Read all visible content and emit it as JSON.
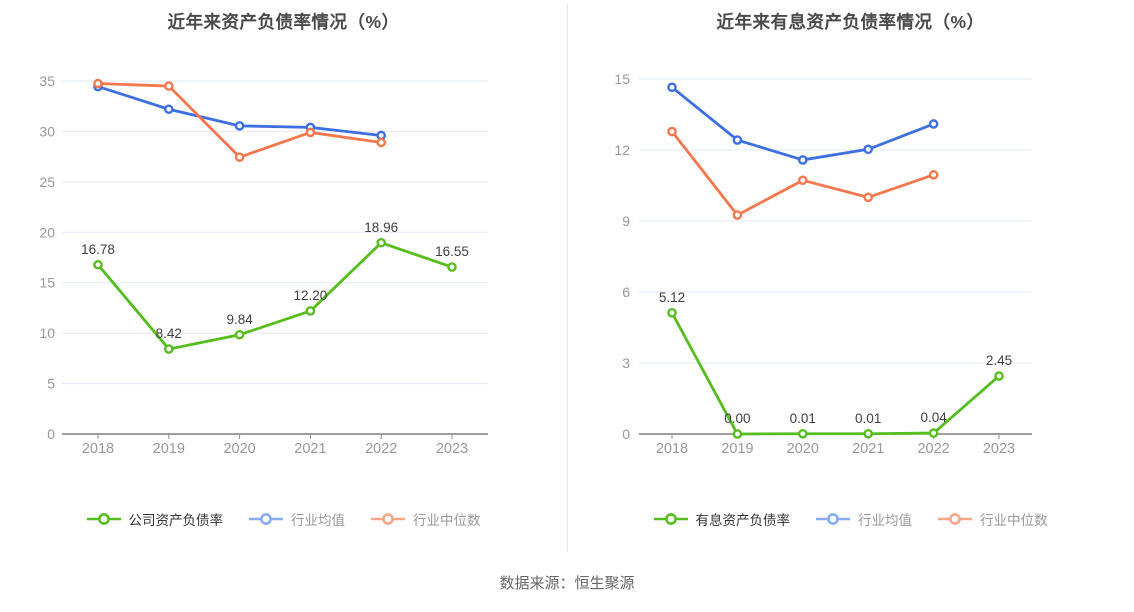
{
  "page": {
    "footer_text": "数据来源：恒生聚源",
    "background": "#ffffff"
  },
  "styles": {
    "title_color": "#4a4a4a",
    "axis_line_color": "#666666",
    "grid_line_color": "#e3e8f3",
    "tick_label_color": "#999999",
    "data_label_color": "#404040",
    "legend_active_text_color": "#333333",
    "legend_muted_text_color": "#999999"
  },
  "chart_data": [
    {
      "type": "line",
      "title": "近年来资产负债率情况（%）",
      "categories": [
        "2018",
        "2019",
        "2020",
        "2021",
        "2022",
        "2023"
      ],
      "xlabel": "",
      "ylabel": "",
      "ylim": [
        0,
        35
      ],
      "ytick_step": 5,
      "grid": true,
      "legend_position": "bottom",
      "series": [
        {
          "key": "company-asset-liability-ratio",
          "name": "公司资产负债率",
          "color": "#56bd1e",
          "legend_marker_color": "#56bd1e",
          "legend_text_style": "active",
          "show_point_labels": true,
          "values": [
            16.78,
            8.42,
            9.84,
            12.2,
            18.96,
            16.55
          ],
          "point_labels": [
            "16.78",
            "8.42",
            "9.84",
            "12.20",
            "18.96",
            "16.55"
          ]
        },
        {
          "key": "industry-mean",
          "name": "行业均值",
          "color": "#3d6fe1",
          "legend_marker_color": "#86abf3",
          "legend_text_style": "muted",
          "show_point_labels": false,
          "values": [
            34.45,
            32.2,
            30.55,
            30.4,
            29.6,
            null
          ],
          "point_labels": []
        },
        {
          "key": "industry-median",
          "name": "行业中位数",
          "color": "#f5774e",
          "legend_marker_color": "#f9a58a",
          "legend_text_style": "muted",
          "show_point_labels": false,
          "values": [
            34.75,
            34.5,
            27.45,
            29.9,
            28.9,
            null
          ],
          "point_labels": []
        }
      ]
    },
    {
      "type": "line",
      "title": "近年来有息资产负债率情况（%）",
      "categories": [
        "2018",
        "2019",
        "2020",
        "2021",
        "2022",
        "2023"
      ],
      "xlabel": "",
      "ylabel": "",
      "ylim": [
        0,
        15
      ],
      "ytick_step": 3,
      "grid": true,
      "legend_position": "bottom",
      "series": [
        {
          "key": "interest-bearing-asset-liability-ratio",
          "name": "有息资产负债率",
          "color": "#56bd1e",
          "legend_marker_color": "#56bd1e",
          "legend_text_style": "active",
          "show_point_labels": true,
          "values": [
            5.12,
            0,
            0.01,
            0.01,
            0.04,
            2.45
          ],
          "point_labels": [
            "5.12",
            "0.00",
            "0.01",
            "0.01",
            "0.04",
            "2.45"
          ]
        },
        {
          "key": "industry-mean",
          "name": "行业均值",
          "color": "#3d6fe1",
          "legend_marker_color": "#86abf3",
          "legend_text_style": "muted",
          "show_point_labels": false,
          "values": [
            14.65,
            12.42,
            11.58,
            12.03,
            13.1,
            null
          ],
          "point_labels": []
        },
        {
          "key": "industry-median",
          "name": "行业中位数",
          "color": "#f5774e",
          "legend_marker_color": "#f9a58a",
          "legend_text_style": "muted",
          "show_point_labels": false,
          "values": [
            12.78,
            9.25,
            10.72,
            10.0,
            10.95,
            null
          ],
          "point_labels": []
        }
      ]
    }
  ]
}
